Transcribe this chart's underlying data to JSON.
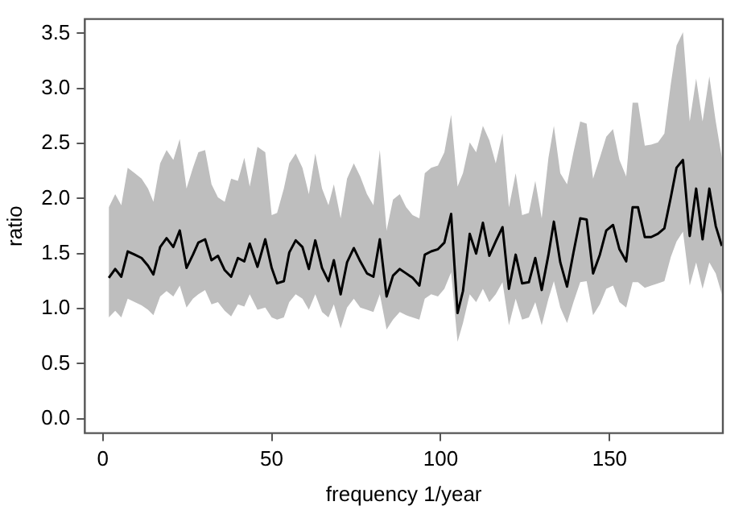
{
  "chart_data": {
    "type": "line",
    "xlabel": "frequency 1/year",
    "ylabel": "ratio",
    "xlim": [
      -5.3,
      183.5
    ],
    "ylim": [
      -0.13,
      3.63
    ],
    "xticks": [
      0,
      50,
      100,
      150
    ],
    "yticks": [
      {
        "value": 0,
        "label": "0.0"
      },
      {
        "value": 0.5,
        "label": "0.5"
      },
      {
        "value": 1,
        "label": "1.0"
      },
      {
        "value": 1.5,
        "label": "1.5"
      },
      {
        "value": 2,
        "label": "2.0"
      },
      {
        "value": 2.5,
        "label": "2.5"
      },
      {
        "value": 3,
        "label": "3.0"
      },
      {
        "value": 3.5,
        "label": "3.5"
      }
    ],
    "grid": false,
    "legend": false,
    "marker": "none",
    "line_style": "solid",
    "x": [
      1.8,
      3.7,
      5.5,
      7.4,
      9.5,
      11.5,
      13.4,
      15.0,
      17.0,
      18.9,
      20.9,
      22.8,
      24.8,
      26.7,
      28.3,
      30.3,
      32.2,
      34.1,
      36.1,
      38.0,
      40.0,
      41.9,
      43.5,
      45.8,
      48.1,
      50.0,
      51.6,
      53.6,
      55.2,
      57.1,
      59.1,
      61.0,
      62.9,
      64.9,
      66.8,
      68.4,
      70.4,
      72.3,
      74.3,
      76.2,
      78.2,
      80.1,
      82.0,
      84.0,
      85.9,
      87.9,
      89.8,
      91.7,
      93.7,
      95.3,
      97.2,
      99.2,
      101.1,
      103.1,
      105.0,
      106.6,
      108.6,
      110.5,
      112.5,
      114.4,
      116.3,
      118.3,
      120.2,
      122.2,
      124.1,
      126.1,
      128.0,
      129.9,
      131.9,
      133.5,
      135.4,
      137.4,
      139.3,
      141.3,
      143.2,
      145.1,
      147.1,
      149.0,
      151.0,
      152.9,
      154.9,
      156.8,
      158.4,
      160.4,
      162.3,
      164.3,
      166.2,
      168.1,
      169.8,
      171.7,
      173.7,
      175.6,
      177.5,
      179.5,
      181.4,
      183.2
    ],
    "series": [
      {
        "color": "#000000",
        "values": [
          1.28,
          1.36,
          1.29,
          1.52,
          1.49,
          1.46,
          1.39,
          1.31,
          1.56,
          1.64,
          1.56,
          1.71,
          1.37,
          1.49,
          1.6,
          1.63,
          1.44,
          1.48,
          1.35,
          1.29,
          1.46,
          1.43,
          1.59,
          1.38,
          1.63,
          1.37,
          1.23,
          1.25,
          1.51,
          1.62,
          1.56,
          1.36,
          1.62,
          1.37,
          1.25,
          1.44,
          1.13,
          1.42,
          1.55,
          1.43,
          1.32,
          1.29,
          1.63,
          1.11,
          1.3,
          1.36,
          1.32,
          1.28,
          1.21,
          1.49,
          1.52,
          1.54,
          1.6,
          1.86,
          0.96,
          1.16,
          1.68,
          1.5,
          1.78,
          1.48,
          1.61,
          1.74,
          1.18,
          1.49,
          1.23,
          1.24,
          1.46,
          1.17,
          1.49,
          1.79,
          1.42,
          1.2,
          1.51,
          1.82,
          1.81,
          1.32,
          1.49,
          1.71,
          1.76,
          1.54,
          1.43,
          1.92,
          1.92,
          1.65,
          1.65,
          1.68,
          1.73,
          2.01,
          2.28,
          2.35,
          1.66,
          2.09,
          1.63,
          2.09,
          1.75,
          1.57
        ],
        "upper": [
          1.92,
          2.04,
          1.94,
          2.28,
          2.23,
          2.18,
          2.09,
          1.97,
          2.32,
          2.44,
          2.35,
          2.54,
          2.09,
          2.28,
          2.42,
          2.44,
          2.13,
          2.01,
          1.97,
          2.18,
          2.16,
          2.37,
          2.11,
          2.47,
          2.42,
          1.85,
          1.87,
          2.09,
          2.32,
          2.41,
          2.28,
          2.04,
          2.41,
          2.09,
          1.94,
          2.13,
          1.82,
          2.18,
          2.32,
          2.2,
          2.04,
          1.94,
          2.44,
          1.71,
          1.99,
          2.04,
          1.92,
          1.85,
          1.82,
          2.23,
          2.28,
          2.3,
          2.42,
          2.76,
          2.11,
          2.23,
          2.51,
          2.42,
          2.66,
          2.53,
          2.32,
          2.59,
          1.92,
          2.23,
          1.85,
          1.87,
          2.16,
          1.82,
          2.37,
          2.66,
          2.23,
          2.13,
          2.42,
          2.7,
          2.68,
          2.18,
          2.37,
          2.56,
          2.63,
          2.35,
          2.2,
          2.87,
          2.87,
          2.48,
          2.49,
          2.51,
          2.59,
          3.04,
          3.39,
          3.51,
          2.7,
          3.09,
          2.7,
          3.11,
          2.7,
          2.37
        ],
        "lower": [
          0.92,
          0.98,
          0.92,
          1.09,
          1.06,
          1.03,
          0.99,
          0.94,
          1.11,
          1.16,
          1.11,
          1.21,
          1.01,
          1.09,
          1.13,
          1.17,
          1.04,
          1.06,
          0.98,
          0.93,
          1.04,
          1.02,
          1.13,
          0.99,
          1.01,
          0.92,
          0.9,
          0.92,
          1.06,
          1.13,
          1.09,
          0.99,
          1.13,
          0.97,
          0.92,
          1.04,
          0.82,
          1.01,
          1.09,
          1.01,
          0.99,
          0.97,
          1.13,
          0.81,
          0.9,
          0.97,
          0.94,
          0.92,
          0.9,
          1.09,
          1.13,
          1.11,
          1.18,
          1.33,
          0.7,
          0.87,
          1.13,
          1.06,
          1.18,
          1.06,
          1.13,
          1.24,
          0.85,
          1.09,
          0.9,
          0.92,
          1.06,
          0.85,
          1.09,
          1.25,
          1.01,
          0.87,
          1.06,
          1.24,
          1.25,
          0.94,
          1.04,
          1.18,
          1.21,
          1.06,
          1.01,
          1.24,
          1.24,
          1.19,
          1.21,
          1.23,
          1.25,
          1.47,
          1.61,
          1.7,
          1.21,
          1.42,
          1.18,
          1.42,
          1.32,
          1.13
        ]
      }
    ]
  }
}
